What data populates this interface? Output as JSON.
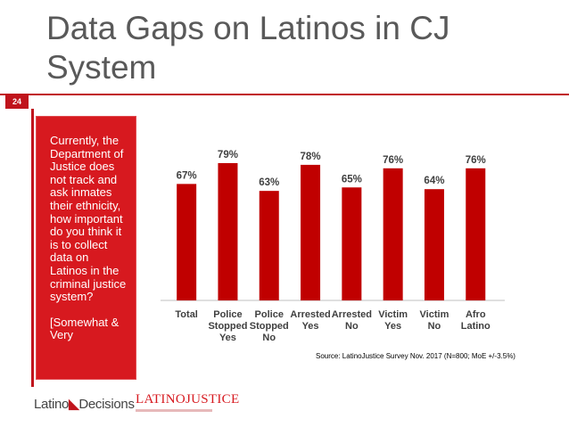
{
  "slide": {
    "title": "Data Gaps on Latinos in CJ System",
    "number": "24"
  },
  "question": {
    "text": "Currently, the Department of Justice does not track and ask inmates their ethnicity, how important do you think it is to collect data on Latinos in the criminal justice system?",
    "note": "[Somewhat & Very"
  },
  "source_note": "Source: LatinoJustice Survey Nov. 2017 (N=800; MoE +/-3.5%)",
  "logos": {
    "latino_decisions": "Latino Decisions",
    "latino_decisions_part1": "Latino",
    "latino_decisions_part2": "Decisions",
    "latino_justice": "LATINOJUSTICE",
    "latino_justice_part1": "LATINO",
    "latino_justice_part2": "JUSTICE"
  },
  "colors": {
    "bar": "#c00000",
    "accent": "#c0141c",
    "box": "#d7191f"
  },
  "chart_data": {
    "type": "bar",
    "title": "",
    "xlabel": "",
    "ylabel": "",
    "ylim": [
      0,
      100
    ],
    "grid": false,
    "categories": [
      [
        "Total"
      ],
      [
        "Police",
        "Stopped",
        "Yes"
      ],
      [
        "Police",
        "Stopped",
        "No"
      ],
      [
        "Arrested",
        "Yes"
      ],
      [
        "Arrested",
        "No"
      ],
      [
        "Victim",
        "Yes"
      ],
      [
        "Victim",
        "No"
      ],
      [
        "Afro",
        "Latino"
      ]
    ],
    "values": [
      67,
      79,
      63,
      78,
      65,
      76,
      64,
      76
    ],
    "labels": [
      "67%",
      "79%",
      "63%",
      "78%",
      "65%",
      "76%",
      "64%",
      "76%"
    ]
  }
}
